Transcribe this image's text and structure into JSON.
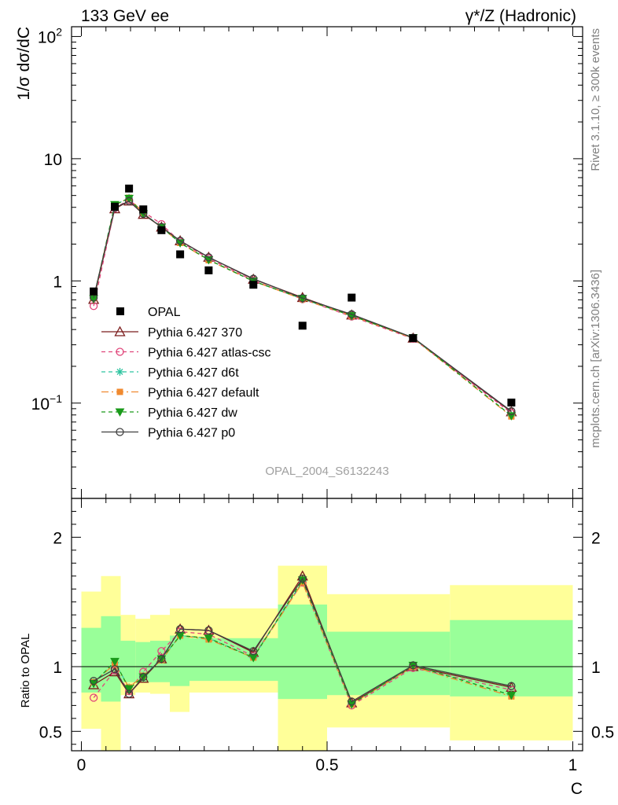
{
  "chart_data": {
    "type": "line",
    "header_left": "133 GeV ee",
    "header_right": "γ*/Z (Hadronic)",
    "main_ylabel": "1/σ dσ/dC",
    "ratio_ylabel": "Ratio to OPAL",
    "xlabel": "C",
    "analysis_label": "OPAL_2004_S6132243",
    "side_text_top": "Rivet 3.1.10, ≥ 300k events",
    "side_text_bottom": "mcplots.cern.ch [arXiv:1306.3436]",
    "xlim": [
      -0.02,
      1.02
    ],
    "main_ylim_log10": [
      -1.78,
      2.08
    ],
    "ratio_ylim": [
      0.35,
      2.3
    ],
    "x_ticks": [
      {
        "v": 0,
        "label": "0"
      },
      {
        "v": 0.5,
        "label": "0.5"
      },
      {
        "v": 1,
        "label": "1"
      }
    ],
    "main_y_ticks": [
      {
        "exp": -1,
        "label": "10",
        "sup": "−1"
      },
      {
        "exp": 0,
        "label": "1",
        "sup": ""
      },
      {
        "exp": 1,
        "label": "10",
        "sup": ""
      },
      {
        "exp": 2,
        "label": "10",
        "sup": "2"
      }
    ],
    "ratio_y_ticks": [
      {
        "v": 0.5,
        "label": "0.5"
      },
      {
        "v": 1,
        "label": "1"
      },
      {
        "v": 2,
        "label": "2"
      }
    ],
    "bin_edges": [
      0,
      0.04,
      0.08,
      0.11,
      0.14,
      0.18,
      0.22,
      0.3,
      0.4,
      0.5,
      0.6,
      0.75,
      1.0
    ],
    "band_green": [
      [
        0.8,
        1.3
      ],
      [
        0.73,
        1.39
      ],
      [
        0.88,
        1.2
      ],
      [
        0.88,
        1.19
      ],
      [
        0.88,
        1.2
      ],
      [
        0.85,
        1.24
      ],
      [
        0.89,
        1.22
      ],
      [
        0.89,
        1.22
      ],
      [
        0.75,
        1.48
      ],
      [
        0.78,
        1.27
      ],
      [
        0.78,
        1.27
      ],
      [
        0.77,
        1.36
      ]
    ],
    "band_yellow": [
      [
        0.52,
        1.58
      ],
      [
        0.35,
        1.7
      ],
      [
        0.78,
        1.4
      ],
      [
        0.8,
        1.37
      ],
      [
        0.79,
        1.4
      ],
      [
        0.65,
        1.45
      ],
      [
        0.8,
        1.45
      ],
      [
        0.8,
        1.45
      ],
      [
        0.35,
        1.78
      ],
      [
        0.53,
        1.56
      ],
      [
        0.53,
        1.56
      ],
      [
        0.43,
        1.63
      ]
    ],
    "x": [
      0.025,
      0.068,
      0.097,
      0.126,
      0.163,
      0.201,
      0.259,
      0.35,
      0.45,
      0.55,
      0.675,
      0.875
    ],
    "opal": {
      "name": "OPAL",
      "values": [
        0.82,
        4.05,
        5.7,
        3.85,
        2.6,
        1.65,
        1.22,
        0.93,
        0.43,
        0.73,
        0.34,
        0.101
      ]
    },
    "series": [
      {
        "name": "Pythia 6.427 370",
        "color": "#7b1c1c",
        "dash": "",
        "marker": "triangle-open",
        "ratio": [
          0.86,
          0.96,
          0.79,
          0.91,
          1.06,
          1.29,
          1.28,
          1.11,
          1.7,
          0.72,
          1.0,
          0.84
        ]
      },
      {
        "name": "Pythia 6.427 atlas-csc",
        "color": "#e0457a",
        "dash": "5,4",
        "marker": "circle-open",
        "ratio": [
          0.76,
          0.97,
          0.81,
          0.96,
          1.12,
          1.27,
          1.25,
          1.08,
          1.65,
          0.7,
          0.99,
          0.82
        ]
      },
      {
        "name": "Pythia 6.427 d6t",
        "color": "#2ec4a0",
        "dash": "5,4",
        "marker": "star",
        "ratio": [
          0.88,
          1.03,
          0.84,
          0.93,
          1.06,
          1.24,
          1.22,
          1.07,
          1.66,
          0.71,
          1.01,
          0.78
        ]
      },
      {
        "name": "Pythia 6.427 default",
        "color": "#f08a30",
        "dash": "9,4,2,4",
        "marker": "square-filled",
        "ratio": [
          0.88,
          1.02,
          0.84,
          0.93,
          1.05,
          1.24,
          1.21,
          1.07,
          1.65,
          0.71,
          1.0,
          0.77
        ]
      },
      {
        "name": "Pythia 6.427 dw",
        "color": "#1a9a1a",
        "dash": "5,4",
        "marker": "triangle-down-filled",
        "ratio": [
          0.87,
          1.04,
          0.83,
          0.92,
          1.06,
          1.24,
          1.22,
          1.07,
          1.67,
          0.71,
          1.01,
          0.78
        ]
      },
      {
        "name": "Pythia 6.427 p0",
        "color": "#404040",
        "dash": "",
        "marker": "circle-open",
        "ratio": [
          0.89,
          0.98,
          0.79,
          0.92,
          1.06,
          1.29,
          1.28,
          1.12,
          1.68,
          0.73,
          1.01,
          0.85
        ]
      }
    ]
  }
}
